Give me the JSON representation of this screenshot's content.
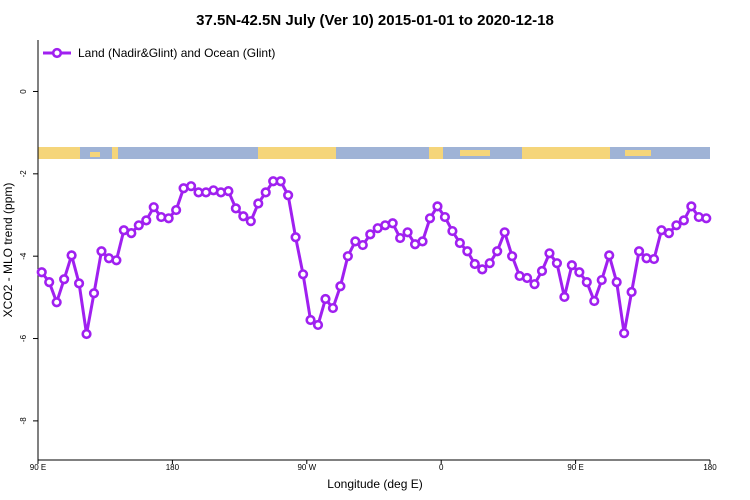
{
  "chart_data": {
    "type": "line",
    "title": "37.5N-42.5N July (Ver 10)   2015-01-01 to 2020-12-18",
    "x_label": "Longitude (deg E)",
    "y_label": "XCO2 - MLO trend (ppm)",
    "x": [
      92.5,
      97.5,
      102.5,
      107.5,
      112.5,
      117.5,
      122.5,
      127.5,
      132.5,
      137.5,
      142.5,
      147.5,
      152.5,
      157.5,
      162.5,
      167.5,
      172.5,
      177.5,
      182.5,
      187.5,
      192.5,
      197.5,
      202.5,
      207.5,
      212.5,
      217.5,
      222.5,
      227.5,
      232.5,
      237.5,
      242.5,
      247.5,
      252.5,
      257.5,
      262.5,
      267.5,
      272.5,
      277.5,
      282.5,
      287.5,
      292.5,
      297.5,
      302.5,
      307.5,
      312.5,
      317.5,
      322.5,
      327.5,
      332.5,
      337.5,
      342.5,
      347.5,
      352.5,
      357.5,
      362.5,
      367.5,
      372.5,
      377.5,
      382.5,
      387.5,
      392.5,
      397.5,
      402.5,
      407.5,
      412.5,
      417.5,
      422.5,
      427.5,
      432.5,
      437.5,
      442.5,
      447.5,
      452.5,
      457.5,
      462.5,
      467.5,
      472.5,
      477.5,
      482.5,
      487.5,
      492.5,
      497.5,
      502.5,
      507.5,
      512.5,
      517.5,
      522.5,
      527.5,
      532.5,
      537.5
    ],
    "series": [
      {
        "name": "Land (Nadir&Glint) and Ocean (Glint)",
        "color": "#a020f0",
        "values": [
          -4.39,
          -4.63,
          -5.12,
          -4.56,
          -3.98,
          -4.66,
          -5.89,
          -4.9,
          -3.88,
          -4.05,
          -4.1,
          -3.37,
          -3.44,
          -3.25,
          -3.13,
          -2.81,
          -3.05,
          -3.08,
          -2.88,
          -2.35,
          -2.3,
          -2.45,
          -2.45,
          -2.4,
          -2.45,
          -2.42,
          -2.84,
          -3.03,
          -3.15,
          -2.72,
          -2.45,
          -2.18,
          -2.18,
          -2.52,
          -3.54,
          -4.44,
          -5.55,
          -5.67,
          -5.04,
          -5.26,
          -4.73,
          -4.0,
          -3.64,
          -3.73,
          -3.47,
          -3.32,
          -3.25,
          -3.2,
          -3.56,
          -3.42,
          -3.71,
          -3.64,
          -3.08,
          -2.79,
          -3.05,
          -3.39,
          -3.68,
          -3.88,
          -4.19,
          -4.32,
          -4.17,
          -3.88,
          -3.42,
          -4.0,
          -4.48,
          -4.53,
          -4.68,
          -4.36,
          -3.93,
          -4.17,
          -4.99,
          -4.22,
          -4.39,
          -4.63,
          -5.09,
          -4.58,
          -3.98,
          -4.63,
          -5.87,
          -4.87,
          -3.88,
          -4.05,
          -4.07,
          -3.37,
          -3.44,
          -3.25,
          -3.13,
          -2.79,
          -3.05,
          -3.08
        ]
      }
    ],
    "xlim": [
      90,
      540
    ],
    "xticks": [
      {
        "value": 90,
        "label": "90 E"
      },
      {
        "value": 180,
        "label": "180"
      },
      {
        "value": 270,
        "label": "90 W"
      },
      {
        "value": 360,
        "label": "0"
      },
      {
        "value": 450,
        "label": "90 E"
      },
      {
        "value": 540,
        "label": "180"
      }
    ],
    "ylim": [
      -8.95,
      1.25
    ],
    "yticks": [
      -8,
      -6,
      -4,
      -2,
      0
    ],
    "legend": "top-left"
  }
}
